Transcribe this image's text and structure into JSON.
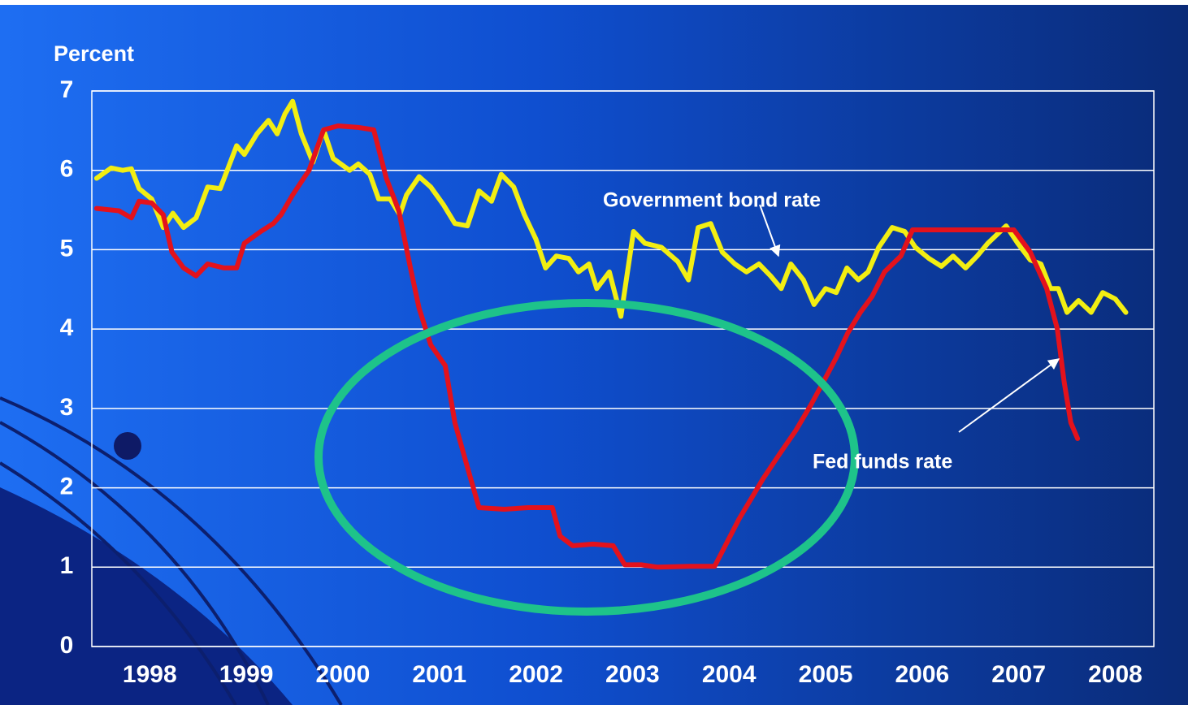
{
  "chart_data": {
    "type": "line",
    "y_label": "Percent",
    "xlim": [
      1997.9,
      2008.9
    ],
    "xticks": [
      {
        "value": 1998.5,
        "label": "1998"
      },
      {
        "value": 1999.5,
        "label": "1999"
      },
      {
        "value": 2000.5,
        "label": "2000"
      },
      {
        "value": 2001.5,
        "label": "2001"
      },
      {
        "value": 2002.5,
        "label": "2002"
      },
      {
        "value": 2003.5,
        "label": "2003"
      },
      {
        "value": 2004.5,
        "label": "2004"
      },
      {
        "value": 2005.5,
        "label": "2005"
      },
      {
        "value": 2006.5,
        "label": "2006"
      },
      {
        "value": 2007.5,
        "label": "2007"
      },
      {
        "value": 2008.5,
        "label": "2008"
      }
    ],
    "ylim": [
      0,
      7
    ],
    "yticks": [
      0,
      1,
      2,
      3,
      4,
      5,
      6,
      7
    ],
    "grid": true,
    "annotations": [
      "Government bond rate",
      "Fed funds rate"
    ],
    "series": [
      {
        "name": "Government bond rate",
        "color": "#f2ee12",
        "x": [
          1997.95,
          1998.1,
          1998.22,
          1998.31,
          1998.39,
          1998.52,
          1998.64,
          1998.74,
          1998.85,
          1998.98,
          1999.1,
          1999.23,
          1999.4,
          1999.48,
          1999.61,
          1999.73,
          1999.82,
          1999.9,
          1999.98,
          2000.07,
          2000.19,
          2000.3,
          2000.4,
          2000.57,
          2000.66,
          2000.78,
          2000.87,
          2000.99,
          2001.09,
          2001.16,
          2001.29,
          2001.41,
          2001.54,
          2001.66,
          2001.79,
          2001.91,
          2002.04,
          2002.14,
          2002.27,
          2002.38,
          2002.5,
          2002.6,
          2002.71,
          2002.84,
          2002.94,
          2003.05,
          2003.13,
          2003.26,
          2003.38,
          2003.51,
          2003.63,
          2003.8,
          2003.97,
          2004.08,
          2004.18,
          2004.31,
          2004.43,
          2004.56,
          2004.68,
          2004.81,
          2004.93,
          2005.04,
          2005.14,
          2005.27,
          2005.38,
          2005.5,
          2005.61,
          2005.72,
          2005.84,
          2005.94,
          2006.05,
          2006.19,
          2006.32,
          2006.43,
          2006.57,
          2006.7,
          2006.82,
          2006.95,
          2007.07,
          2007.18,
          2007.37,
          2007.49,
          2007.62,
          2007.73,
          2007.83,
          2007.91,
          2008.0,
          2008.12,
          2008.25,
          2008.37,
          2008.5,
          2008.61
        ],
        "values": [
          5.9,
          6.03,
          6.0,
          6.02,
          5.77,
          5.64,
          5.28,
          5.46,
          5.28,
          5.4,
          5.79,
          5.77,
          6.31,
          6.2,
          6.46,
          6.63,
          6.46,
          6.71,
          6.87,
          6.46,
          6.1,
          6.51,
          6.15,
          6.0,
          6.08,
          5.95,
          5.64,
          5.64,
          5.44,
          5.69,
          5.92,
          5.79,
          5.57,
          5.33,
          5.3,
          5.74,
          5.61,
          5.95,
          5.79,
          5.44,
          5.13,
          4.77,
          4.92,
          4.89,
          4.72,
          4.82,
          4.51,
          4.72,
          4.16,
          5.23,
          5.08,
          5.03,
          4.85,
          4.62,
          5.28,
          5.33,
          4.97,
          4.82,
          4.72,
          4.82,
          4.67,
          4.51,
          4.82,
          4.62,
          4.31,
          4.51,
          4.46,
          4.77,
          4.62,
          4.72,
          5.03,
          5.28,
          5.23,
          5.03,
          4.89,
          4.79,
          4.92,
          4.77,
          4.92,
          5.08,
          5.3,
          5.08,
          4.87,
          4.82,
          4.51,
          4.51,
          4.21,
          4.36,
          4.21,
          4.46,
          4.38,
          4.21
        ]
      },
      {
        "name": "Fed funds rate",
        "color": "#e3121c",
        "x": [
          1997.95,
          1998.18,
          1998.31,
          1998.39,
          1998.52,
          1998.64,
          1998.73,
          1998.85,
          1998.98,
          1999.1,
          1999.27,
          1999.4,
          1999.48,
          1999.65,
          1999.78,
          1999.86,
          1999.98,
          2000.15,
          2000.3,
          2000.45,
          2000.66,
          2000.82,
          2000.95,
          2001.08,
          2001.2,
          2001.29,
          2001.41,
          2001.56,
          2001.66,
          2001.79,
          2001.91,
          2002.17,
          2002.42,
          2002.67,
          2002.75,
          2002.88,
          2003.09,
          2003.3,
          2003.42,
          2003.59,
          2003.76,
          2004.1,
          2004.35,
          2004.6,
          2004.85,
          2005.02,
          2005.19,
          2005.35,
          2005.48,
          2005.61,
          2005.73,
          2005.86,
          2005.98,
          2006.11,
          2006.28,
          2006.4,
          2006.61,
          2007.03,
          2007.45,
          2007.62,
          2007.79,
          2007.9,
          2007.97,
          2008.04,
          2008.11
        ],
        "values": [
          5.52,
          5.49,
          5.4,
          5.61,
          5.59,
          5.44,
          4.97,
          4.77,
          4.67,
          4.82,
          4.77,
          4.77,
          5.08,
          5.23,
          5.33,
          5.44,
          5.69,
          6.0,
          6.51,
          6.56,
          6.54,
          6.51,
          5.9,
          5.49,
          4.77,
          4.26,
          3.8,
          3.54,
          2.82,
          2.26,
          1.75,
          1.73,
          1.75,
          1.75,
          1.39,
          1.27,
          1.29,
          1.27,
          1.03,
          1.03,
          1.0,
          1.01,
          1.01,
          1.6,
          2.11,
          2.42,
          2.72,
          3.05,
          3.34,
          3.64,
          3.95,
          4.21,
          4.41,
          4.72,
          4.92,
          5.25,
          5.25,
          5.25,
          5.25,
          4.97,
          4.51,
          4.0,
          3.34,
          2.82,
          2.62
        ]
      }
    ]
  }
}
